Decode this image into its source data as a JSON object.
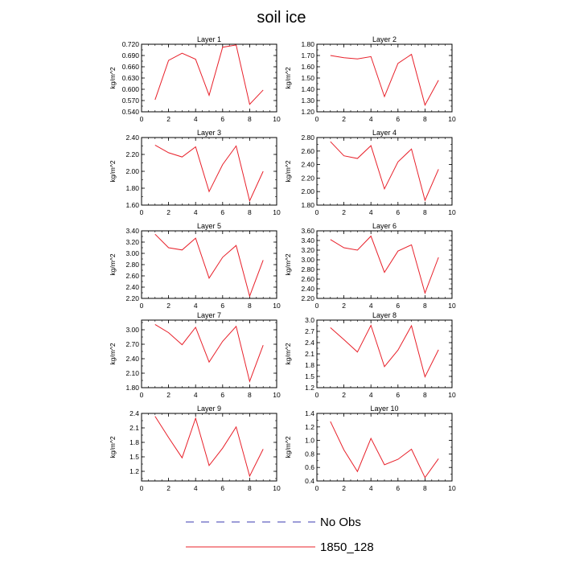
{
  "figure": {
    "title": "soil ice",
    "colors": {
      "series": "#e8202a",
      "obs": "#3b3bb0",
      "axis": "#000000"
    }
  },
  "legend": [
    {
      "label": "No Obs",
      "style": "dashed",
      "color": "#3b3bb0"
    },
    {
      "label": "1850_128",
      "style": "solid",
      "color": "#e8202a"
    }
  ],
  "chart_data": [
    {
      "type": "line",
      "title": "Layer 1",
      "ylabel": "kg/m^2",
      "xlim": [
        0,
        10
      ],
      "ylim": [
        0.54,
        0.72
      ],
      "xticks": [
        "0",
        "2",
        "4",
        "6",
        "8",
        "10"
      ],
      "yticks": [
        "0.540",
        "0.570",
        "0.600",
        "0.630",
        "0.660",
        "0.690",
        "0.720"
      ],
      "series": [
        {
          "name": "1850_128",
          "x": [
            1,
            2,
            3,
            4,
            5,
            6,
            7,
            8,
            9
          ],
          "values": [
            0.572,
            0.677,
            0.696,
            0.68,
            0.584,
            0.712,
            0.718,
            0.56,
            0.598
          ]
        }
      ]
    },
    {
      "type": "line",
      "title": "Layer 2",
      "ylabel": "kg/m^2",
      "xlim": [
        0,
        10
      ],
      "ylim": [
        1.2,
        1.8
      ],
      "xticks": [
        "0",
        "2",
        "4",
        "6",
        "8",
        "10"
      ],
      "yticks": [
        "1.20",
        "1.30",
        "1.40",
        "1.50",
        "1.60",
        "1.70",
        "1.80"
      ],
      "series": [
        {
          "name": "1850_128",
          "x": [
            1,
            2,
            3,
            4,
            5,
            6,
            7,
            8,
            9
          ],
          "values": [
            1.7,
            1.68,
            1.67,
            1.69,
            1.335,
            1.63,
            1.71,
            1.26,
            1.48
          ]
        }
      ]
    },
    {
      "type": "line",
      "title": "Layer 3",
      "ylabel": "kg/m^2",
      "xlim": [
        0,
        10
      ],
      "ylim": [
        1.6,
        2.4
      ],
      "xticks": [
        "0",
        "2",
        "4",
        "6",
        "8",
        "10"
      ],
      "yticks": [
        "1.60",
        "1.80",
        "2.00",
        "2.20",
        "2.40"
      ],
      "series": [
        {
          "name": "1850_128",
          "x": [
            1,
            2,
            3,
            4,
            5,
            6,
            7,
            8,
            9
          ],
          "values": [
            2.31,
            2.22,
            2.17,
            2.29,
            1.76,
            2.08,
            2.3,
            1.65,
            2.0
          ]
        }
      ]
    },
    {
      "type": "line",
      "title": "Layer 4",
      "ylabel": "kg/m^2",
      "xlim": [
        0,
        10
      ],
      "ylim": [
        1.8,
        2.8
      ],
      "xticks": [
        "0",
        "2",
        "4",
        "6",
        "8",
        "10"
      ],
      "yticks": [
        "1.80",
        "2.00",
        "2.20",
        "2.40",
        "2.60",
        "2.80"
      ],
      "series": [
        {
          "name": "1850_128",
          "x": [
            1,
            2,
            3,
            4,
            5,
            6,
            7,
            8,
            9
          ],
          "values": [
            2.74,
            2.53,
            2.49,
            2.68,
            2.04,
            2.44,
            2.63,
            1.87,
            2.33
          ]
        }
      ]
    },
    {
      "type": "line",
      "title": "Layer 5",
      "ylabel": "kg/m^2",
      "xlim": [
        0,
        10
      ],
      "ylim": [
        2.2,
        3.4
      ],
      "xticks": [
        "0",
        "2",
        "4",
        "6",
        "8",
        "10"
      ],
      "yticks": [
        "2.20",
        "2.40",
        "2.60",
        "2.80",
        "3.00",
        "3.20",
        "3.40"
      ],
      "series": [
        {
          "name": "1850_128",
          "x": [
            1,
            2,
            3,
            4,
            5,
            6,
            7,
            8,
            9
          ],
          "values": [
            3.34,
            3.1,
            3.06,
            3.27,
            2.56,
            2.93,
            3.14,
            2.24,
            2.88
          ]
        }
      ]
    },
    {
      "type": "line",
      "title": "Layer 6",
      "ylabel": "kg/m^2",
      "xlim": [
        0,
        10
      ],
      "ylim": [
        2.2,
        3.6
      ],
      "xticks": [
        "0",
        "2",
        "4",
        "6",
        "8",
        "10"
      ],
      "yticks": [
        "2.20",
        "2.40",
        "2.60",
        "2.80",
        "3.00",
        "3.20",
        "3.40",
        "3.60"
      ],
      "series": [
        {
          "name": "1850_128",
          "x": [
            1,
            2,
            3,
            4,
            5,
            6,
            7,
            8,
            9
          ],
          "values": [
            3.42,
            3.25,
            3.2,
            3.49,
            2.74,
            3.18,
            3.31,
            2.31,
            3.05
          ]
        }
      ]
    },
    {
      "type": "line",
      "title": "Layer 7",
      "ylabel": "kg/m^2",
      "xlim": [
        0,
        10
      ],
      "ylim": [
        1.8,
        3.2
      ],
      "xticks": [
        "0",
        "2",
        "4",
        "6",
        "8",
        "10"
      ],
      "yticks": [
        "1.80",
        "2.10",
        "2.40",
        "2.70",
        "3.00"
      ],
      "series": [
        {
          "name": "1850_128",
          "x": [
            1,
            2,
            3,
            4,
            5,
            6,
            7,
            8,
            9
          ],
          "values": [
            3.11,
            2.94,
            2.69,
            3.05,
            2.33,
            2.76,
            3.07,
            1.93,
            2.68
          ]
        }
      ]
    },
    {
      "type": "line",
      "title": "Layer 8",
      "ylabel": "kg/m^2",
      "xlim": [
        0,
        10
      ],
      "ylim": [
        1.2,
        3.0
      ],
      "xticks": [
        "0",
        "2",
        "4",
        "6",
        "8",
        "10"
      ],
      "yticks": [
        "1.2",
        "1.5",
        "1.8",
        "2.1",
        "2.4",
        "2.7",
        "3.0"
      ],
      "series": [
        {
          "name": "1850_128",
          "x": [
            1,
            2,
            3,
            4,
            5,
            6,
            7,
            8,
            9
          ],
          "values": [
            2.8,
            2.48,
            2.15,
            2.86,
            1.76,
            2.2,
            2.85,
            1.49,
            2.21
          ]
        }
      ]
    },
    {
      "type": "line",
      "title": "Layer 9",
      "ylabel": "kg/m^2",
      "xlim": [
        0,
        10
      ],
      "ylim": [
        1.0,
        2.4
      ],
      "xticks": [
        "0",
        "2",
        "4",
        "6",
        "8",
        "10"
      ],
      "yticks": [
        "1.2",
        "1.5",
        "1.8",
        "2.1",
        "2.4"
      ],
      "series": [
        {
          "name": "1850_128",
          "x": [
            1,
            2,
            3,
            4,
            5,
            6,
            7,
            8,
            9
          ],
          "values": [
            2.34,
            1.9,
            1.48,
            2.3,
            1.32,
            1.68,
            2.12,
            1.1,
            1.66
          ]
        }
      ]
    },
    {
      "type": "line",
      "title": "Layer 10",
      "ylabel": "kg/m^2",
      "xlim": [
        0,
        10
      ],
      "ylim": [
        0.4,
        1.4
      ],
      "xticks": [
        "0",
        "2",
        "4",
        "6",
        "8",
        "10"
      ],
      "yticks": [
        "0.4",
        "0.6",
        "0.8",
        "1.0",
        "1.2",
        "1.4"
      ],
      "series": [
        {
          "name": "1850_128",
          "x": [
            1,
            2,
            3,
            4,
            5,
            6,
            7,
            8,
            9
          ],
          "values": [
            1.28,
            0.86,
            0.54,
            1.03,
            0.64,
            0.72,
            0.87,
            0.45,
            0.73
          ]
        }
      ]
    }
  ]
}
